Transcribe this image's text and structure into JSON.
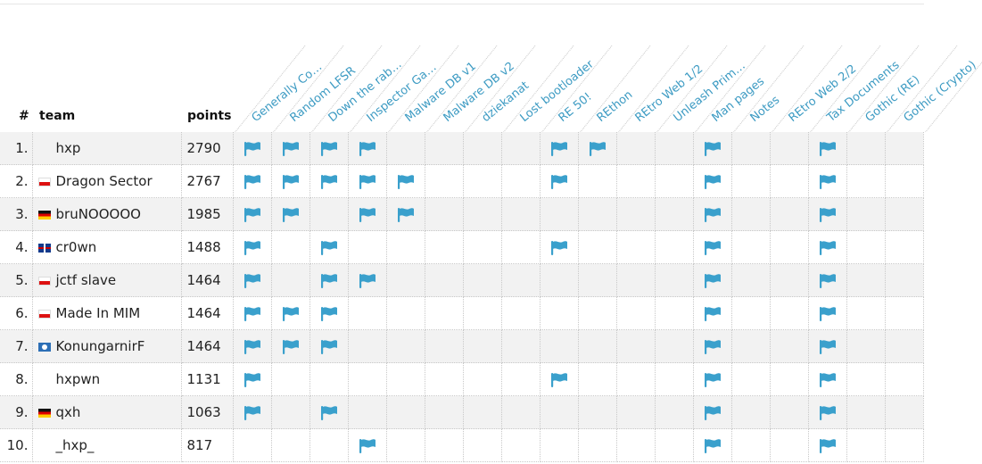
{
  "header": {
    "rank": "#",
    "team": "team",
    "points": "points"
  },
  "challenges": [
    "Generally Complic...",
    "Random LFSR",
    "Down the rabbit ho...",
    "Inspector Gadget",
    "Malware DB v1",
    "Malware DB v2",
    "dziekanat",
    "Lost bootloader",
    "RE 50!",
    "REthon",
    "REtro Web 1/2",
    "Unleash Primordia...",
    "Man pages",
    "Notes",
    "REtro Web 2/2",
    "Tax Documents",
    "Gothic (RE)",
    "Gothic (Crypto)"
  ],
  "colors": {
    "flag": "#3aa0cc",
    "challenge_text": "#3d9bc3",
    "row_alt": "#f2f2f2"
  },
  "rows": [
    {
      "rank": "1.",
      "country": "",
      "team": "hxp",
      "points": "2790",
      "solved": [
        1,
        1,
        1,
        1,
        0,
        0,
        0,
        0,
        1,
        1,
        0,
        0,
        1,
        0,
        0,
        1,
        0,
        0
      ]
    },
    {
      "rank": "2.",
      "country": "pl",
      "team": "Dragon Sector",
      "points": "2767",
      "solved": [
        1,
        1,
        1,
        1,
        1,
        0,
        0,
        0,
        1,
        0,
        0,
        0,
        1,
        0,
        0,
        1,
        0,
        0
      ]
    },
    {
      "rank": "3.",
      "country": "de",
      "team": "bruNOOOOO",
      "points": "1985",
      "solved": [
        1,
        1,
        0,
        1,
        1,
        0,
        0,
        0,
        0,
        0,
        0,
        0,
        1,
        0,
        0,
        1,
        0,
        0
      ]
    },
    {
      "rank": "4.",
      "country": "gb",
      "team": "cr0wn",
      "points": "1488",
      "solved": [
        1,
        0,
        1,
        0,
        0,
        0,
        0,
        0,
        1,
        0,
        0,
        0,
        1,
        0,
        0,
        1,
        0,
        0
      ]
    },
    {
      "rank": "5.",
      "country": "pl",
      "team": "jctf slave",
      "points": "1464",
      "solved": [
        1,
        0,
        1,
        1,
        0,
        0,
        0,
        0,
        0,
        0,
        0,
        0,
        1,
        0,
        0,
        1,
        0,
        0
      ]
    },
    {
      "rank": "6.",
      "country": "pl",
      "team": "Made In MIM",
      "points": "1464",
      "solved": [
        1,
        1,
        1,
        0,
        0,
        0,
        0,
        0,
        0,
        0,
        0,
        0,
        1,
        0,
        0,
        1,
        0,
        0
      ]
    },
    {
      "rank": "7.",
      "country": "aq",
      "team": "KonungarnirF",
      "points": "1464",
      "solved": [
        1,
        1,
        1,
        0,
        0,
        0,
        0,
        0,
        0,
        0,
        0,
        0,
        1,
        0,
        0,
        1,
        0,
        0
      ]
    },
    {
      "rank": "8.",
      "country": "",
      "team": "hxpwn",
      "points": "1131",
      "solved": [
        1,
        0,
        0,
        0,
        0,
        0,
        0,
        0,
        1,
        0,
        0,
        0,
        1,
        0,
        0,
        1,
        0,
        0
      ]
    },
    {
      "rank": "9.",
      "country": "de",
      "team": "qxh",
      "points": "1063",
      "solved": [
        1,
        0,
        1,
        0,
        0,
        0,
        0,
        0,
        0,
        0,
        0,
        0,
        1,
        0,
        0,
        1,
        0,
        0
      ]
    },
    {
      "rank": "10.",
      "country": "",
      "team": "_hxp_",
      "points": "817",
      "solved": [
        0,
        0,
        0,
        1,
        0,
        0,
        0,
        0,
        0,
        0,
        0,
        0,
        1,
        0,
        0,
        1,
        0,
        0
      ]
    }
  ]
}
